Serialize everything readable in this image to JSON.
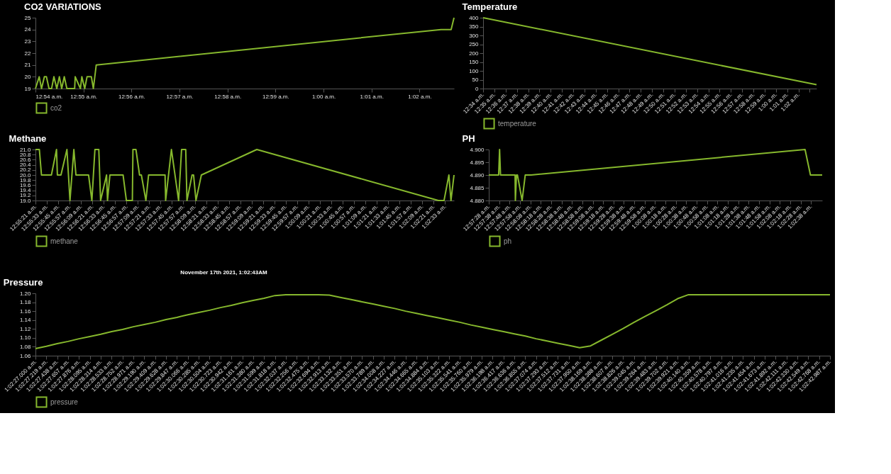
{
  "chart_data": [
    {
      "type": "line",
      "title": "CO2 VARIATIONS",
      "legend": "bottom",
      "marker": "none",
      "line_style": "solid",
      "xlim": [
        0.9,
        1.0453
      ],
      "ylim": [
        19,
        25
      ],
      "yticks": [
        19,
        20,
        21,
        22,
        23,
        24,
        25
      ],
      "xticks": [
        {
          "value": 0.9,
          "label": "12:54 a.m."
        },
        {
          "value": 0.91667,
          "label": "12:55 a.m."
        },
        {
          "value": 0.93333,
          "label": "12:56 a.m."
        },
        {
          "value": 0.95,
          "label": "12:57 a.m."
        },
        {
          "value": 0.96667,
          "label": "12:58 a.m."
        },
        {
          "value": 0.98333,
          "label": "12:59 a.m."
        },
        {
          "value": 1.0,
          "label": "1:00 a.m."
        },
        {
          "value": 1.01667,
          "label": "1:01 a.m."
        },
        {
          "value": 1.03333,
          "label": "1:02 a.m."
        }
      ],
      "series": [
        {
          "name": "co2",
          "color": "#86b82d",
          "x": [
            0.9,
            0.9013,
            0.9021,
            0.9031,
            0.9038,
            0.9047,
            0.9056,
            0.9064,
            0.9074,
            0.9083,
            0.9091,
            0.91,
            0.9109,
            0.9136,
            0.9138,
            0.9156,
            0.9161,
            0.9171,
            0.9179,
            0.9194,
            0.9201,
            0.9211,
            1.0408,
            1.0443,
            1.0453
          ],
          "values": [
            19,
            20,
            19,
            20,
            20,
            19,
            19,
            20,
            19,
            20,
            19,
            20,
            19,
            19,
            20,
            19,
            20,
            19,
            20,
            20,
            19,
            21,
            24,
            24,
            25
          ]
        }
      ]
    },
    {
      "type": "line",
      "title": "Temperature",
      "legend": "bottom",
      "marker": "none",
      "line_style": "solid",
      "xlim": [
        0.56667,
        1.06
      ],
      "ylim": [
        0,
        400
      ],
      "yticks": [
        0,
        50,
        100,
        150,
        200,
        250,
        300,
        350,
        400
      ],
      "xticks": [
        {
          "value": 0.56667,
          "label": "12:34 a.m."
        },
        {
          "value": 0.58333,
          "label": "12:35 a.m."
        },
        {
          "value": 0.6,
          "label": "12:36 a.m."
        },
        {
          "value": 0.61667,
          "label": "12:37 a.m."
        },
        {
          "value": 0.63333,
          "label": "12:38 a.m."
        },
        {
          "value": 0.65,
          "label": "12:39 a.m."
        },
        {
          "value": 0.66667,
          "label": "12:40 a.m."
        },
        {
          "value": 0.68333,
          "label": "12:41 a.m."
        },
        {
          "value": 0.7,
          "label": "12:42 a.m."
        },
        {
          "value": 0.71667,
          "label": "12:43 a.m."
        },
        {
          "value": 0.73333,
          "label": "12:44 a.m."
        },
        {
          "value": 0.75,
          "label": "12:45 a.m."
        },
        {
          "value": 0.76667,
          "label": "12:46 a.m."
        },
        {
          "value": 0.78333,
          "label": "12:47 a.m."
        },
        {
          "value": 0.8,
          "label": "12:48 a.m."
        },
        {
          "value": 0.81667,
          "label": "12:49 a.m."
        },
        {
          "value": 0.83333,
          "label": "12:50 a.m."
        },
        {
          "value": 0.85,
          "label": "12:51 a.m."
        },
        {
          "value": 0.86667,
          "label": "12:52 a.m."
        },
        {
          "value": 0.88333,
          "label": "12:53 a.m."
        },
        {
          "value": 0.9,
          "label": "12:54 a.m."
        },
        {
          "value": 0.91667,
          "label": "12:55 a.m."
        },
        {
          "value": 0.93333,
          "label": "12:56 a.m."
        },
        {
          "value": 0.95,
          "label": "12:57 a.m."
        },
        {
          "value": 0.96667,
          "label": "12:58 a.m."
        },
        {
          "value": 0.98333,
          "label": "12:59 a.m."
        },
        {
          "value": 1.0,
          "label": "1:00 a.m."
        },
        {
          "value": 1.01667,
          "label": "1:01 a.m."
        },
        {
          "value": 1.03333,
          "label": "1:02 a.m."
        },
        {
          "value": 1.05,
          "label": null
        }
      ],
      "series": [
        {
          "name": "temperature",
          "color": "#86b82d",
          "x": [
            0.56667,
            1.06
          ],
          "values": [
            400,
            22
          ]
        }
      ]
    },
    {
      "type": "line",
      "title": "Methane",
      "legend": "bottom",
      "marker": "none",
      "line_style": "solid",
      "annotations": [
        "November 17th 2021, 1:02:43AM"
      ],
      "xlim": [
        0.9225,
        1.04514
      ],
      "ylim": [
        19,
        21
      ],
      "yticks": [
        {
          "value": 19,
          "label": "19.0"
        },
        {
          "value": 19.2,
          "label": "19.2"
        },
        {
          "value": 19.4,
          "label": "19.4"
        },
        {
          "value": 19.6,
          "label": "19.6"
        },
        {
          "value": 19.8,
          "label": "19.8"
        },
        {
          "value": 20,
          "label": "20.0"
        },
        {
          "value": 20.2,
          "label": "20.2"
        },
        {
          "value": 20.4,
          "label": "20.4"
        },
        {
          "value": 20.6,
          "label": "20.6"
        },
        {
          "value": 20.8,
          "label": "20.8"
        },
        {
          "value": 21,
          "label": "21.0"
        }
      ],
      "xticks": [
        {
          "value": 0.9225,
          "label": "12:55:21 a.m."
        },
        {
          "value": 0.92583,
          "label": "12:55:33 a.m."
        },
        {
          "value": 0.92917,
          "label": "12:55:45 a.m."
        },
        {
          "value": 0.9325,
          "label": "12:55:57 a.m."
        },
        {
          "value": 0.93583,
          "label": "12:56:09 a.m."
        },
        {
          "value": 0.93917,
          "label": "12:56:21 a.m."
        },
        {
          "value": 0.9425,
          "label": "12:56:33 a.m."
        },
        {
          "value": 0.94583,
          "label": "12:56:45 a.m."
        },
        {
          "value": 0.94917,
          "label": "12:56:57 a.m."
        },
        {
          "value": 0.9525,
          "label": "12:57:09 a.m."
        },
        {
          "value": 0.95583,
          "label": "12:57:21 a.m."
        },
        {
          "value": 0.95917,
          "label": "12:57:33 a.m."
        },
        {
          "value": 0.9625,
          "label": "12:57:45 a.m."
        },
        {
          "value": 0.96583,
          "label": "12:57:57 a.m."
        },
        {
          "value": 0.96917,
          "label": "12:58:09 a.m."
        },
        {
          "value": 0.9725,
          "label": "12:58:21 a.m."
        },
        {
          "value": 0.97583,
          "label": "12:58:33 a.m."
        },
        {
          "value": 0.97917,
          "label": "12:58:45 a.m."
        },
        {
          "value": 0.9825,
          "label": "12:58:57 a.m."
        },
        {
          "value": 0.98583,
          "label": "12:59:09 a.m."
        },
        {
          "value": 0.98917,
          "label": "12:59:21 a.m."
        },
        {
          "value": 0.9925,
          "label": "12:59:33 a.m."
        },
        {
          "value": 0.99583,
          "label": "12:59:45 a.m."
        },
        {
          "value": 0.99917,
          "label": "12:59:57 a.m."
        },
        {
          "value": 1.0025,
          "label": "1:00:09 a.m."
        },
        {
          "value": 1.00583,
          "label": "1:00:21 a.m."
        },
        {
          "value": 1.00917,
          "label": "1:00:33 a.m."
        },
        {
          "value": 1.0125,
          "label": "1:00:45 a.m."
        },
        {
          "value": 1.01583,
          "label": "1:00:57 a.m."
        },
        {
          "value": 1.01917,
          "label": "1:01:09 a.m."
        },
        {
          "value": 1.0225,
          "label": "1:01:21 a.m."
        },
        {
          "value": 1.02583,
          "label": "1:01:33 a.m."
        },
        {
          "value": 1.02917,
          "label": "1:01:45 a.m."
        },
        {
          "value": 1.0325,
          "label": "1:01:57 a.m."
        },
        {
          "value": 1.03583,
          "label": "1:02:09 a.m."
        },
        {
          "value": 1.03917,
          "label": "1:02:21 a.m."
        },
        {
          "value": 1.0425,
          "label": "1:02:33 a.m."
        }
      ],
      "series": [
        {
          "name": "methane",
          "color": "#86b82d",
          "x": [
            0.9225,
            0.92364,
            0.92426,
            0.92717,
            0.92867,
            0.92892,
            0.92997,
            0.93172,
            0.93261,
            0.93375,
            0.93436,
            0.93806,
            0.93903,
            0.93992,
            0.94106,
            0.94158,
            0.94333,
            0.94361,
            0.94431,
            0.94817,
            0.94914,
            0.95089,
            0.95106,
            0.95194,
            0.953,
            0.95353,
            0.95486,
            0.95564,
            0.96047,
            0.96064,
            0.96233,
            0.96444,
            0.96531,
            0.96653,
            0.96689,
            0.96839,
            0.96883,
            0.96953,
            0.97111,
            0.98736,
            1.04056,
            1.04222,
            1.04364,
            1.04425,
            1.04514
          ],
          "values": [
            21,
            21,
            20,
            20,
            21,
            20,
            20,
            21,
            19,
            21,
            20,
            20,
            19,
            21,
            21,
            19,
            20,
            19,
            20,
            20,
            19,
            19,
            21,
            21,
            20,
            20,
            19,
            20,
            20,
            19,
            21,
            19,
            21,
            21,
            19,
            20,
            20,
            19,
            20,
            21,
            19,
            19,
            20,
            19,
            20
          ]
        }
      ]
    },
    {
      "type": "line",
      "title": "PH",
      "legend": "bottom",
      "marker": "none",
      "line_style": "solid",
      "xlim": [
        0.95778,
        1.04689
      ],
      "ylim": [
        4.88,
        4.9
      ],
      "yticks": [
        {
          "value": 4.88,
          "label": "4.880"
        },
        {
          "value": 4.885,
          "label": "4.885"
        },
        {
          "value": 4.89,
          "label": "4.890"
        },
        {
          "value": 4.895,
          "label": "4.895"
        },
        {
          "value": 4.9,
          "label": "4.900"
        }
      ],
      "xticks": [
        {
          "value": 0.95778,
          "label": "12:57:28 a.m."
        },
        {
          "value": 0.96056,
          "label": "12:57:38 a.m."
        },
        {
          "value": 0.96333,
          "label": "12:57:48 a.m."
        },
        {
          "value": 0.96611,
          "label": "12:57:58 a.m."
        },
        {
          "value": 0.96889,
          "label": "12:58:08 a.m."
        },
        {
          "value": 0.97167,
          "label": "12:58:18 a.m."
        },
        {
          "value": 0.97444,
          "label": "12:58:28 a.m."
        },
        {
          "value": 0.97722,
          "label": "12:58:38 a.m."
        },
        {
          "value": 0.98,
          "label": "12:58:48 a.m."
        },
        {
          "value": 0.98278,
          "label": "12:58:58 a.m."
        },
        {
          "value": 0.98556,
          "label": "12:59:08 a.m."
        },
        {
          "value": 0.98833,
          "label": "12:59:18 a.m."
        },
        {
          "value": 0.99111,
          "label": "12:59:28 a.m."
        },
        {
          "value": 0.99389,
          "label": "12:59:38 a.m."
        },
        {
          "value": 0.99667,
          "label": "12:59:48 a.m."
        },
        {
          "value": 0.99944,
          "label": "12:59:58 a.m."
        },
        {
          "value": 1.00222,
          "label": "1:00:08 a.m."
        },
        {
          "value": 1.005,
          "label": "1:00:18 a.m."
        },
        {
          "value": 1.00778,
          "label": "1:00:28 a.m."
        },
        {
          "value": 1.01056,
          "label": "1:00:38 a.m."
        },
        {
          "value": 1.01333,
          "label": "1:00:48 a.m."
        },
        {
          "value": 1.01611,
          "label": "1:00:58 a.m."
        },
        {
          "value": 1.01889,
          "label": "1:01:08 a.m."
        },
        {
          "value": 1.02167,
          "label": "1:01:18 a.m."
        },
        {
          "value": 1.02444,
          "label": "1:01:28 a.m."
        },
        {
          "value": 1.02722,
          "label": "1:01:38 a.m."
        },
        {
          "value": 1.03,
          "label": "1:01:48 a.m."
        },
        {
          "value": 1.03278,
          "label": "1:01:58 a.m."
        },
        {
          "value": 1.03556,
          "label": "1:02:08 a.m."
        },
        {
          "value": 1.03833,
          "label": "1:02:18 a.m."
        },
        {
          "value": 1.04111,
          "label": "1:02:28 a.m."
        },
        {
          "value": 1.04389,
          "label": "1:02:38 a.m."
        }
      ],
      "series": [
        {
          "name": "ph",
          "color": "#86b82d",
          "x": [
            0.95778,
            0.96042,
            0.96067,
            0.96092,
            0.96481,
            0.96489,
            0.96519,
            0.96544,
            0.96669,
            0.96753,
            0.96908,
            1.04231,
            1.04375,
            1.04689
          ],
          "values": [
            4.89,
            4.89,
            4.9,
            4.89,
            4.89,
            4.88,
            4.89,
            4.89,
            4.88,
            4.89,
            4.89,
            4.9,
            4.89,
            4.89
          ]
        }
      ]
    },
    {
      "type": "line",
      "title": "Pressure",
      "legend": "bottom",
      "marker": "none",
      "line_style": "solid",
      "ylim": [
        1.06,
        1.2
      ],
      "yticks": [
        {
          "value": 1.06,
          "label": "1.06"
        },
        {
          "value": 1.08,
          "label": "1.08"
        },
        {
          "value": 1.1,
          "label": "1.10"
        },
        {
          "value": 1.12,
          "label": "1.12"
        },
        {
          "value": 1.14,
          "label": "1.14"
        },
        {
          "value": 1.16,
          "label": "1.16"
        },
        {
          "value": 1.18,
          "label": "1.18"
        },
        {
          "value": 1.2,
          "label": "1.20"
        }
      ],
      "categories": [
        "1:02:27.000 a.m.",
        "1:02:27.219 a.m.",
        "1:02:27.438 a.m.",
        "1:02:27.657 a.m.",
        "1:02:27.876 a.m.",
        "1:02:28.095 a.m.",
        "1:02:28.314 a.m.",
        "1:02:28.533 a.m.",
        "1:02:28.752 a.m.",
        "1:02:28.971 a.m.",
        "1:02:29.190 a.m.",
        "1:02:29.409 a.m.",
        "1:02:29.628 a.m.",
        "1:02:29.847 a.m.",
        "1:02:30.066 a.m.",
        "1:02:30.285 a.m.",
        "1:02:30.504 a.m.",
        "1:02:30.723 a.m.",
        "1:02:30.942 a.m.",
        "1:02:31.161 a.m.",
        "1:02:31.380 a.m.",
        "1:02:31.599 a.m.",
        "1:02:31.818 a.m.",
        "1:02:32.037 a.m.",
        "1:02:32.256 a.m.",
        "1:02:32.475 a.m.",
        "1:02:32.694 a.m.",
        "1:02:32.913 a.m.",
        "1:02:33.132 a.m.",
        "1:02:33.351 a.m.",
        "1:02:33.570 a.m.",
        "1:02:33.789 a.m.",
        "1:02:34.008 a.m.",
        "1:02:34.227 a.m.",
        "1:02:34.446 a.m.",
        "1:02:34.665 a.m.",
        "1:02:34.884 a.m.",
        "1:02:35.103 a.m.",
        "1:02:35.322 a.m.",
        "1:02:35.541 a.m.",
        "1:02:35.760 a.m.",
        "1:02:35.979 a.m.",
        "1:02:36.198 a.m.",
        "1:02:36.417 a.m.",
        "1:02:36.636 a.m.",
        "1:02:36.855 a.m.",
        "1:02:37.074 a.m.",
        "1:02:37.293 a.m.",
        "1:02:37.512 a.m.",
        "1:02:37.731 a.m.",
        "1:02:37.950 a.m.",
        "1:02:38.169 a.m.",
        "1:02:38.388 a.m.",
        "1:02:38.607 a.m.",
        "1:02:38.826 a.m.",
        "1:02:39.045 a.m.",
        "1:02:39.264 a.m.",
        "1:02:39.483 a.m.",
        "1:02:39.702 a.m.",
        "1:02:39.921 a.m.",
        "1:02:40.140 a.m.",
        "1:02:40.359 a.m.",
        "1:02:40.578 a.m.",
        "1:02:40.797 a.m.",
        "1:02:41.016 a.m.",
        "1:02:41.235 a.m.",
        "1:02:41.454 a.m.",
        "1:02:41.673 a.m.",
        "1:02:41.892 a.m.",
        "1:02:42.111 a.m.",
        "1:02:42.330 a.m.",
        "1:02:42.549 a.m.",
        "1:02:42.768 a.m.",
        "1:02:42.987 a.m."
      ],
      "series": [
        {
          "name": "pressure",
          "color": "#86b82d",
          "values": [
            1.076,
            1.081,
            1.087,
            1.092,
            1.098,
            1.103,
            1.108,
            1.114,
            1.119,
            1.125,
            1.13,
            1.135,
            1.141,
            1.146,
            1.152,
            1.157,
            1.162,
            1.168,
            1.173,
            1.179,
            1.184,
            1.189,
            1.195,
            1.197,
            1.197,
            1.197,
            1.197,
            1.196,
            1.191,
            1.186,
            1.181,
            1.176,
            1.171,
            1.166,
            1.16,
            1.155,
            1.15,
            1.145,
            1.14,
            1.135,
            1.129,
            1.124,
            1.119,
            1.114,
            1.109,
            1.104,
            1.098,
            1.093,
            1.088,
            1.083,
            1.078,
            1.082,
            1.095,
            1.108,
            1.121,
            1.135,
            1.148,
            1.161,
            1.174,
            1.188,
            1.197,
            1.197,
            1.197,
            1.197,
            1.197,
            1.197,
            1.197,
            1.197,
            1.197,
            1.197,
            1.197,
            1.197,
            1.197,
            1.197
          ]
        }
      ]
    }
  ]
}
